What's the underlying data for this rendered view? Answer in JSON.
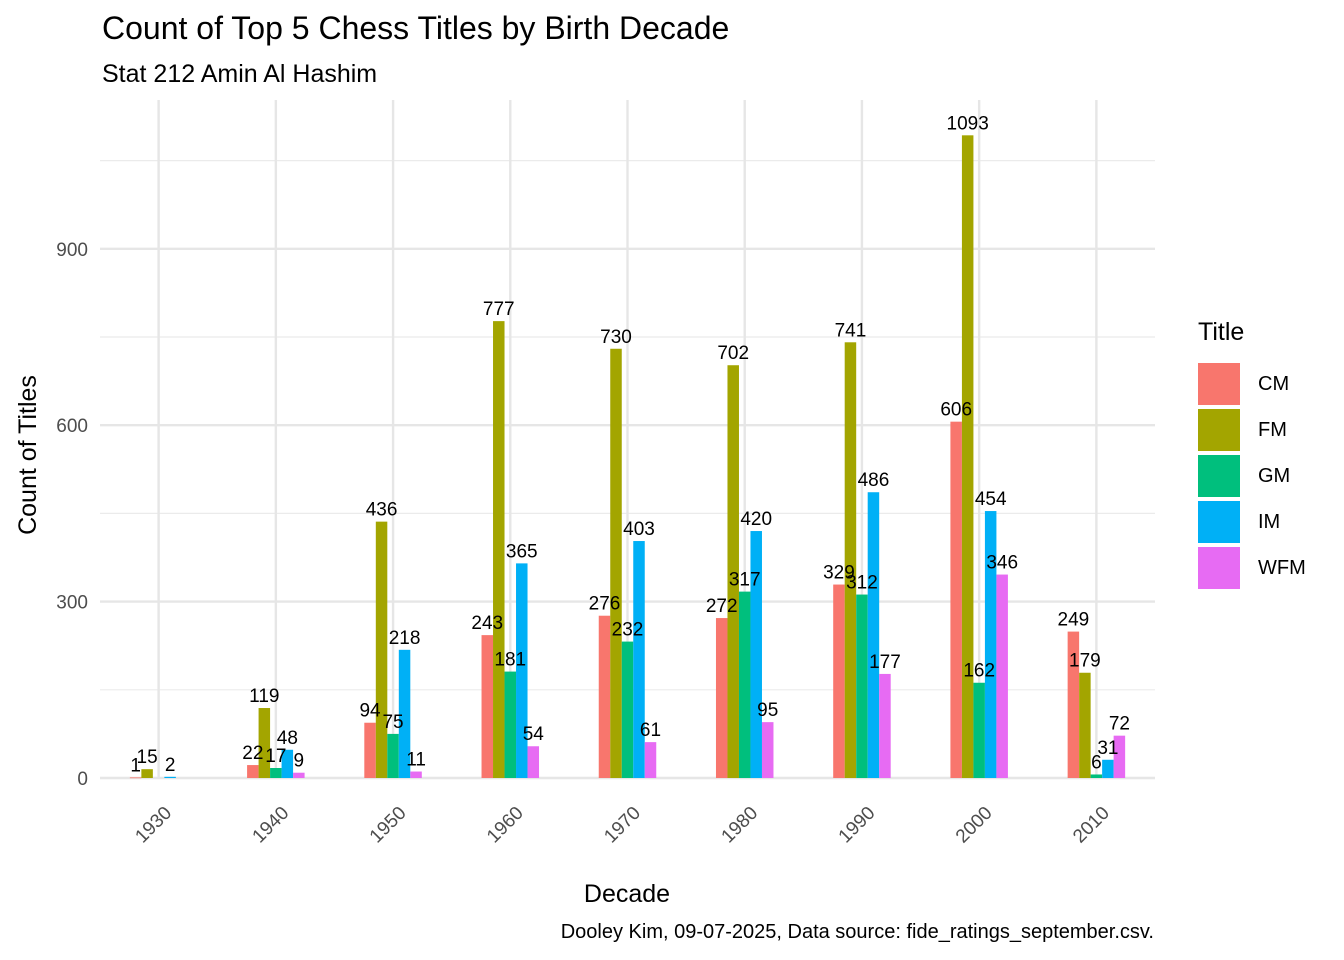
{
  "chart_data": {
    "type": "bar",
    "title": "Count of Top 5 Chess Titles by Birth Decade",
    "subtitle": "Stat 212 Amin Al Hashim",
    "caption": "Dooley Kim, 09-07-2025, Data source: fide_ratings_september.csv.",
    "xlabel": "Decade",
    "ylabel": "Count of Titles",
    "categories": [
      "1930",
      "1940",
      "1950",
      "1960",
      "1970",
      "1980",
      "1990",
      "2000",
      "2010"
    ],
    "yticks": [
      0,
      300,
      600,
      900
    ],
    "ylim": [
      0,
      1150
    ],
    "grid": true,
    "legend_position": "right",
    "legend_title": "Title",
    "series": [
      {
        "name": "CM",
        "color": "#F8766D",
        "values": [
          1,
          22,
          94,
          243,
          276,
          272,
          329,
          606,
          249
        ]
      },
      {
        "name": "FM",
        "color": "#A3A500",
        "values": [
          15,
          119,
          436,
          777,
          730,
          702,
          741,
          1093,
          179
        ]
      },
      {
        "name": "GM",
        "color": "#00BF7D",
        "values": [
          null,
          17,
          75,
          181,
          232,
          317,
          312,
          162,
          6
        ]
      },
      {
        "name": "IM",
        "color": "#00B0F6",
        "values": [
          2,
          48,
          218,
          365,
          403,
          420,
          486,
          454,
          31
        ]
      },
      {
        "name": "WFM",
        "color": "#E76BF3",
        "values": [
          null,
          9,
          11,
          54,
          61,
          95,
          177,
          346,
          72
        ]
      }
    ]
  }
}
